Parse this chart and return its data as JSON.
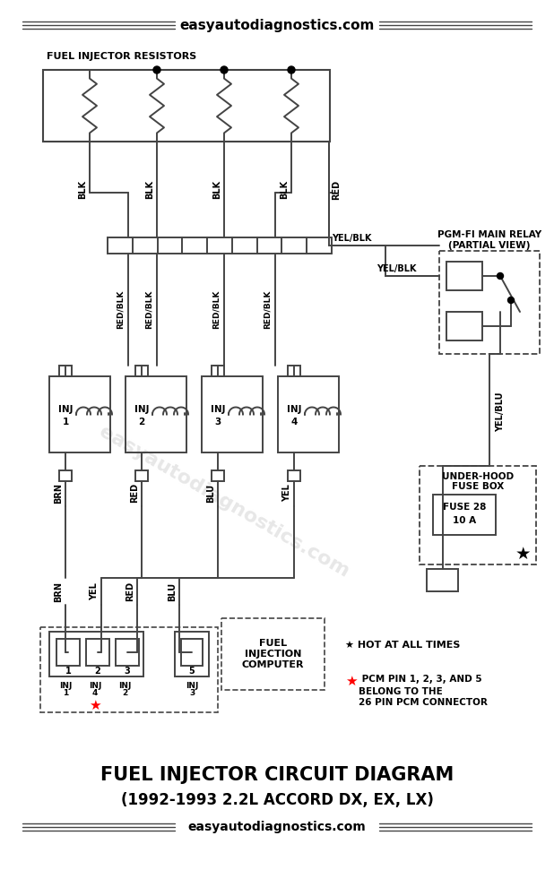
{
  "title_top": "easyautodiagnostics.com",
  "title_bottom1": "FUEL INJECTOR CIRCUIT DIAGRAM",
  "title_bottom2": "(1992-1993 2.2L ACCORD DX, EX, LX)",
  "title_bottom3": "easyautodiagnostics.com",
  "section_label": "FUEL INJECTOR RESISTORS",
  "bg_color": "#ffffff",
  "line_color": "#444444",
  "text_color": "#000000",
  "pgm_relay_label1": "PGM-FI MAIN RELAY",
  "pgm_relay_label2": "(PARTIAL VIEW)",
  "fuse_box_label1": "UNDER-HOOD",
  "fuse_box_label2": "FUSE BOX",
  "fuse_label1": "FUSE 28",
  "fuse_label2": "10 A",
  "wire_labels_top": [
    "BLK",
    "BLK",
    "BLK",
    "BLK",
    "RED"
  ],
  "wire_labels_mid": [
    "RED/BLK",
    "RED/BLK",
    "RED/BLK",
    "RED/BLK"
  ],
  "wire_labels_inj_bot": [
    "BRN",
    "RED",
    "BLU",
    "YEL"
  ],
  "wire_labels_pcm": [
    "BRN",
    "YEL",
    "RED",
    "BLU"
  ],
  "yel_blk_label": "YEL/BLK",
  "yel_blu_label": "YEL/BLU",
  "note1_star": "★",
  "note1_text": " HOT AT ALL TIMES",
  "note2_text1": " PCM PIN 1, 2, 3, AND 5",
  "note2_text2": "BELONG TO THE",
  "note2_text3": "26 PIN PCM CONNECTOR",
  "watermark": "easyautodiagnostics.com",
  "pcm_pin_labels": [
    "1",
    "2",
    "3",
    "5"
  ],
  "pcm_inj_labels_row1": [
    "INJ",
    "INJ",
    "INJ"
  ],
  "pcm_inj_labels_row2": [
    "1",
    "4",
    "2"
  ],
  "pcm_inj3_label": "INJ",
  "pcm_inj3_num": "3",
  "fuel_computer_label": "FUEL\nINJECTION\nCOMPUTER"
}
